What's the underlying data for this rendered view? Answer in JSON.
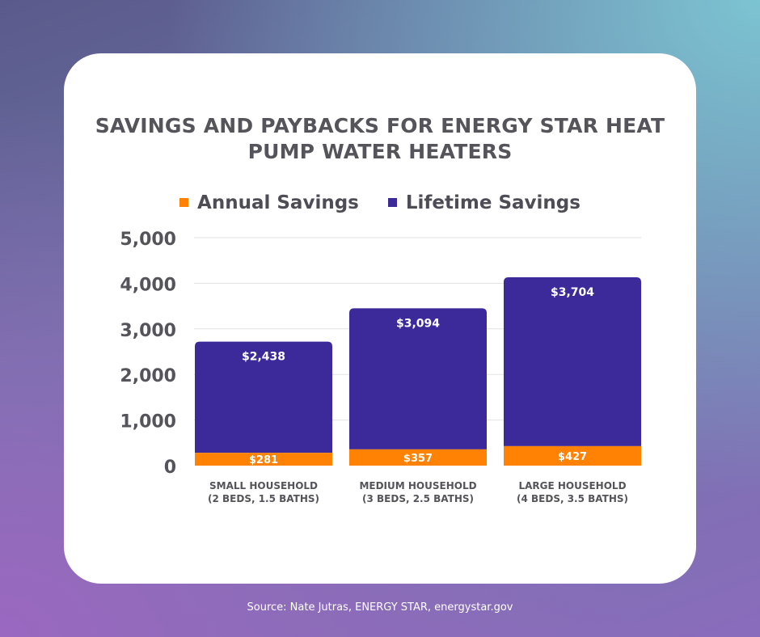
{
  "chart_data": {
    "type": "bar",
    "stacked": true,
    "title_lines": [
      "SAVINGS AND PAYBACKS FOR ENERGY STAR HEAT",
      "PUMP WATER HEATERS"
    ],
    "categories": [
      [
        "SMALL HOUSEHOLD",
        "(2 BEDS, 1.5 BATHS)"
      ],
      [
        "MEDIUM HOUSEHOLD",
        "(3 BEDS, 2.5 BATHS)"
      ],
      [
        "LARGE HOUSEHOLD",
        "(4 BEDS, 3.5 BATHS)"
      ]
    ],
    "series": [
      {
        "name": "Annual Savings",
        "color": "#ff8205",
        "values": [
          281,
          357,
          427
        ],
        "labels": [
          "$281",
          "$357",
          "$427"
        ]
      },
      {
        "name": "Lifetime Savings",
        "color": "#3c2a9b",
        "values": [
          2438,
          3094,
          3704
        ],
        "labels": [
          "$2,438",
          "$3,094",
          "$3,704"
        ]
      }
    ],
    "yticks": [
      0,
      1000,
      2000,
      3000,
      4000,
      5000
    ],
    "ytick_labels": [
      "0",
      "1,000",
      "2,000",
      "3,000",
      "4,000",
      "5,000"
    ],
    "ylim": [
      0,
      5000
    ],
    "grid": true,
    "legend_position": "top-center"
  },
  "source": "Source: Nate Jutras, ENERGY STAR, energystar.gov"
}
